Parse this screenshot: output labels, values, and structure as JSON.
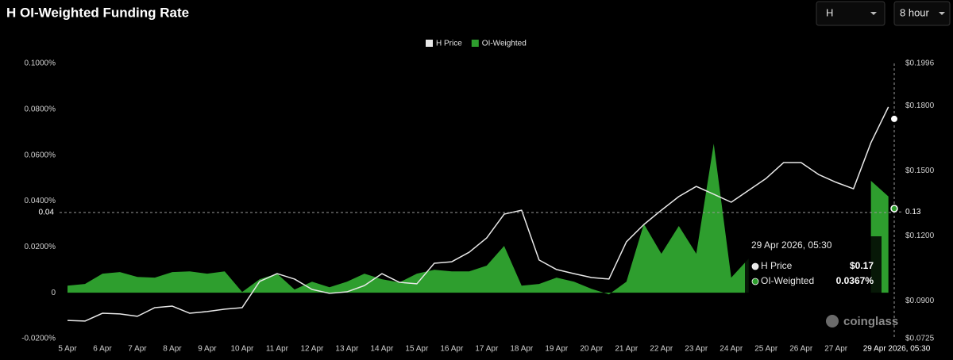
{
  "chart_data": {
    "type": "combo",
    "title": "H OI-Weighted Funding Rate",
    "controls": [
      "H",
      "8 hour"
    ],
    "x": [
      "2026-04-05T00:00",
      "2026-04-05T12:00",
      "2026-04-06T00:00",
      "2026-04-06T12:00",
      "2026-04-07T00:00",
      "2026-04-07T12:00",
      "2026-04-08T00:00",
      "2026-04-08T12:00",
      "2026-04-09T00:00",
      "2026-04-09T12:00",
      "2026-04-10T00:00",
      "2026-04-10T12:00",
      "2026-04-11T00:00",
      "2026-04-11T12:00",
      "2026-04-12T00:00",
      "2026-04-12T12:00",
      "2026-04-13T00:00",
      "2026-04-13T12:00",
      "2026-04-14T00:00",
      "2026-04-14T12:00",
      "2026-04-15T00:00",
      "2026-04-15T12:00",
      "2026-04-16T00:00",
      "2026-04-16T12:00",
      "2026-04-17T00:00",
      "2026-04-17T12:00",
      "2026-04-18T00:00",
      "2026-04-18T12:00",
      "2026-04-19T00:00",
      "2026-04-19T12:00",
      "2026-04-20T00:00",
      "2026-04-20T12:00",
      "2026-04-21T00:00",
      "2026-04-21T12:00",
      "2026-04-22T00:00",
      "2026-04-22T12:00",
      "2026-04-23T00:00",
      "2026-04-23T12:00",
      "2026-04-24T00:00",
      "2026-04-24T12:00",
      "2026-04-25T00:00",
      "2026-04-25T12:00",
      "2026-04-26T00:00",
      "2026-04-26T12:00",
      "2026-04-27T00:00",
      "2026-04-27T12:00",
      "2026-04-28T00:00",
      "2026-04-28T12:00"
    ],
    "xlim": [
      "2026-04-05T00:00",
      "2026-04-28T16:00"
    ],
    "xticks": [
      {
        "value": "2026-04-05T00:00",
        "label": "5 Apr"
      },
      {
        "value": "2026-04-06T00:00",
        "label": "6 Apr"
      },
      {
        "value": "2026-04-07T00:00",
        "label": "7 Apr"
      },
      {
        "value": "2026-04-08T00:00",
        "label": "8 Apr"
      },
      {
        "value": "2026-04-09T00:00",
        "label": "9 Apr"
      },
      {
        "value": "2026-04-10T00:00",
        "label": "10 Apr"
      },
      {
        "value": "2026-04-11T00:00",
        "label": "11 Apr"
      },
      {
        "value": "2026-04-12T00:00",
        "label": "12 Apr"
      },
      {
        "value": "2026-04-13T00:00",
        "label": "13 Apr"
      },
      {
        "value": "2026-04-14T00:00",
        "label": "14 Apr"
      },
      {
        "value": "2026-04-15T00:00",
        "label": "15 Apr"
      },
      {
        "value": "2026-04-16T00:00",
        "label": "16 Apr"
      },
      {
        "value": "2026-04-17T00:00",
        "label": "17 Apr"
      },
      {
        "value": "2026-04-18T00:00",
        "label": "18 Apr"
      },
      {
        "value": "2026-04-19T00:00",
        "label": "19 Apr"
      },
      {
        "value": "2026-04-20T00:00",
        "label": "20 Apr"
      },
      {
        "value": "2026-04-21T00:00",
        "label": "21 Apr"
      },
      {
        "value": "2026-04-22T00:00",
        "label": "22 Apr"
      },
      {
        "value": "2026-04-23T00:00",
        "label": "23 Apr"
      },
      {
        "value": "2026-04-24T00:00",
        "label": "24 Apr"
      },
      {
        "value": "2026-04-25T00:00",
        "label": "25 Apr"
      },
      {
        "value": "2026-04-26T00:00",
        "label": "26 Apr"
      },
      {
        "value": "2026-04-27T00:00",
        "label": "27 Apr"
      }
    ],
    "ylim": [
      -0.02,
      0.1
    ],
    "yticks": [
      {
        "value": -0.02,
        "label": "-0.0200%"
      },
      0,
      {
        "value": 0.02,
        "label": "0.0200%"
      },
      {
        "value": 0.04,
        "label": "0.0400%"
      },
      {
        "value": 0.06,
        "label": "0.0600%"
      },
      {
        "value": 0.08,
        "label": "0.0800%"
      },
      {
        "value": 0.1,
        "label": "0.1000%"
      }
    ],
    "y2lim": [
      0.0725,
      0.1996
    ],
    "y2ticks": [
      {
        "value": 0.0725,
        "label": "$0.0725"
      },
      {
        "value": 0.09,
        "label": "$0.0900"
      },
      {
        "value": 0.12,
        "label": "$0.1200"
      },
      {
        "value": 0.15,
        "label": "$0.1500"
      },
      {
        "value": 0.18,
        "label": "$0.1800"
      },
      {
        "value": 0.1996,
        "label": "$0.1996"
      }
    ],
    "grid": false,
    "series": [
      {
        "name": "H Price",
        "type": "line",
        "axis": "y2",
        "color": "#e8e8e8",
        "values": [
          0.0809,
          0.0806,
          0.0842,
          0.0839,
          0.0828,
          0.0868,
          0.0875,
          0.0842,
          0.085,
          0.0861,
          0.0868,
          0.0989,
          0.1025,
          0.1,
          0.0952,
          0.0934,
          0.0941,
          0.097,
          0.1025,
          0.0985,
          0.0978,
          0.1073,
          0.108,
          0.1124,
          0.119,
          0.13,
          0.1318,
          0.1088,
          0.1044,
          0.1025,
          0.1007,
          0.1,
          0.1172,
          0.1252,
          0.1318,
          0.1381,
          0.1428,
          0.1392,
          0.1355,
          0.141,
          0.1465,
          0.1538,
          0.1538,
          0.1483,
          0.1447,
          0.1417,
          0.163,
          0.1795
        ]
      },
      {
        "name": "OI-Weighted",
        "type": "area",
        "color": "#2e9e2e",
        "values": [
          0.0031,
          0.0038,
          0.0083,
          0.009,
          0.0069,
          0.0066,
          0.009,
          0.0093,
          0.0083,
          0.0093,
          0.0003,
          0.0059,
          0.0083,
          0.0014,
          0.0048,
          0.0024,
          0.0048,
          0.0083,
          0.0059,
          0.0045,
          0.0083,
          0.01,
          0.0093,
          0.0093,
          0.0118,
          0.0204,
          0.0031,
          0.0038,
          0.0066,
          0.0048,
          0.0017,
          -0.0007,
          0.0048,
          0.03,
          0.017,
          0.0291,
          0.017,
          0.065,
          0.0066,
          0.0149,
          null,
          null,
          null,
          null,
          null,
          null,
          0.0488,
          0.042
        ]
      }
    ],
    "crosshair": {
      "x": "29 Apr 2026, 05:30",
      "y": {
        "value": 0.035,
        "label": "0.04"
      },
      "y2": {
        "value": 0.131,
        "label": "0.13"
      }
    },
    "tooltip": {
      "title": "29 Apr 2026, 05:30",
      "items": [
        {
          "name": "H Price",
          "value": 0.174,
          "label": "$0.17"
        },
        {
          "name": "OI-Weighted",
          "value": 0.0367,
          "label": "0.0367%"
        }
      ]
    },
    "watermark": "coinglass"
  }
}
